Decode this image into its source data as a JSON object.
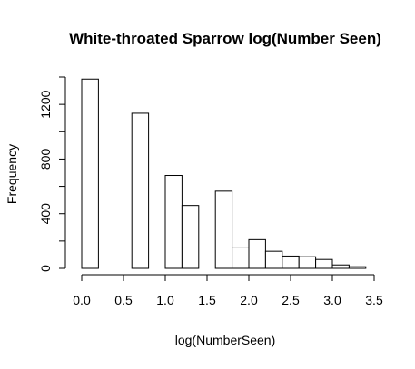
{
  "chart_data": {
    "type": "bar",
    "subtype": "histogram",
    "title": "White-throated Sparrow log(Number Seen)",
    "xlabel": "log(NumberSeen)",
    "ylabel": "Frequency",
    "xlim": [
      0,
      3.5
    ],
    "ylim": [
      0,
      1400
    ],
    "x_ticks": [
      0,
      0.5,
      1,
      1.5,
      2,
      2.5,
      3,
      3.5
    ],
    "x_tick_labels": [
      "0.0",
      "0.5",
      "1.0",
      "1.5",
      "2.0",
      "2.5",
      "3.0",
      "3.5"
    ],
    "y_ticks": [
      0,
      200,
      400,
      600,
      800,
      1000,
      1200,
      1400
    ],
    "y_tick_labels": [
      "0",
      "",
      "400",
      "",
      "800",
      "",
      "1200",
      ""
    ],
    "bins": [
      {
        "x0": 0.0,
        "x1": 0.2,
        "count": 1385
      },
      {
        "x0": 0.2,
        "x1": 0.4,
        "count": 0
      },
      {
        "x0": 0.4,
        "x1": 0.6,
        "count": 0
      },
      {
        "x0": 0.6,
        "x1": 0.8,
        "count": 1135
      },
      {
        "x0": 0.8,
        "x1": 1.0,
        "count": 0
      },
      {
        "x0": 1.0,
        "x1": 1.2,
        "count": 680
      },
      {
        "x0": 1.2,
        "x1": 1.4,
        "count": 460
      },
      {
        "x0": 1.4,
        "x1": 1.6,
        "count": 0
      },
      {
        "x0": 1.6,
        "x1": 1.8,
        "count": 565
      },
      {
        "x0": 1.8,
        "x1": 2.0,
        "count": 150
      },
      {
        "x0": 2.0,
        "x1": 2.2,
        "count": 210
      },
      {
        "x0": 2.2,
        "x1": 2.4,
        "count": 125
      },
      {
        "x0": 2.4,
        "x1": 2.6,
        "count": 90
      },
      {
        "x0": 2.6,
        "x1": 2.8,
        "count": 85
      },
      {
        "x0": 2.8,
        "x1": 3.0,
        "count": 65
      },
      {
        "x0": 3.0,
        "x1": 3.2,
        "count": 25
      },
      {
        "x0": 3.2,
        "x1": 3.4,
        "count": 12
      }
    ],
    "grid": false,
    "legend": "none",
    "colors": {
      "bar_fill": "#ffffff",
      "bar_stroke": "#000000"
    }
  }
}
